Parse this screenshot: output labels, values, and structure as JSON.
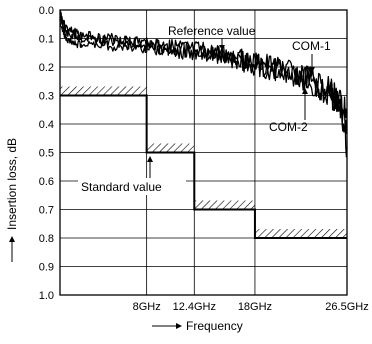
{
  "chart_data": {
    "type": "line",
    "title": "",
    "xlabel": "Frequency",
    "ylabel": "Insertion loss, dB",
    "ylim": [
      0.0,
      1.0
    ],
    "y_inverted": true,
    "y_ticks": [
      "0.0",
      "0.1",
      "0.2",
      "0.3",
      "0.4",
      "0.5",
      "0.6",
      "0.7",
      "0.8",
      "0.9",
      "1.0"
    ],
    "xlim": [
      0,
      26.5
    ],
    "x_ticks": [
      {
        "value": 8,
        "label": "8GHz"
      },
      {
        "value": 12.4,
        "label": "12.4GHz"
      },
      {
        "value": 18,
        "label": "18GHz"
      },
      {
        "value": 26.5,
        "label": "26.5GHz"
      }
    ],
    "grid": true,
    "series": [
      {
        "name": "Reference value",
        "x": [
          0,
          0.2,
          0.5,
          1,
          1.5,
          2,
          3,
          4,
          5,
          6,
          7,
          8,
          9,
          10,
          11,
          12,
          13,
          14,
          15,
          16,
          17,
          18,
          19,
          20,
          21,
          22,
          23,
          24,
          25,
          25.5,
          26,
          26.5
        ],
        "y": [
          0.0,
          0.03,
          0.06,
          0.07,
          0.08,
          0.09,
          0.09,
          0.1,
          0.1,
          0.11,
          0.11,
          0.12,
          0.12,
          0.13,
          0.13,
          0.14,
          0.14,
          0.15,
          0.16,
          0.17,
          0.17,
          0.19,
          0.19,
          0.2,
          0.21,
          0.23,
          0.24,
          0.26,
          0.28,
          0.3,
          0.33,
          0.36
        ]
      },
      {
        "name": "COM-1",
        "x": [
          0,
          0.3,
          0.6,
          1,
          1.5,
          2,
          3,
          4,
          5,
          6,
          7,
          8,
          9,
          10,
          11,
          12,
          13,
          14,
          15,
          16,
          17,
          18,
          19,
          20,
          21,
          22,
          23,
          24,
          25,
          25.5,
          26,
          26.5
        ],
        "y": [
          0.02,
          0.06,
          0.08,
          0.09,
          0.09,
          0.1,
          0.1,
          0.11,
          0.11,
          0.11,
          0.12,
          0.12,
          0.13,
          0.13,
          0.14,
          0.14,
          0.15,
          0.15,
          0.16,
          0.17,
          0.18,
          0.19,
          0.2,
          0.21,
          0.22,
          0.23,
          0.25,
          0.27,
          0.29,
          0.31,
          0.36,
          0.48
        ]
      },
      {
        "name": "COM-2",
        "x": [
          0,
          0.3,
          0.6,
          1,
          1.5,
          2,
          3,
          4,
          5,
          6,
          7,
          8,
          9,
          10,
          11,
          12,
          13,
          14,
          15,
          16,
          17,
          18,
          19,
          20,
          21,
          22,
          23,
          24,
          25,
          25.5,
          26,
          26.5
        ],
        "y": [
          0.04,
          0.08,
          0.1,
          0.11,
          0.12,
          0.12,
          0.12,
          0.12,
          0.13,
          0.13,
          0.13,
          0.13,
          0.14,
          0.14,
          0.15,
          0.15,
          0.16,
          0.16,
          0.17,
          0.18,
          0.19,
          0.2,
          0.21,
          0.22,
          0.23,
          0.24,
          0.26,
          0.28,
          0.3,
          0.32,
          0.35,
          0.42
        ]
      }
    ],
    "standard_value": {
      "label": "Standard value",
      "steps": [
        {
          "x0": 0,
          "x1": 8,
          "y": 0.3
        },
        {
          "x0": 8,
          "x1": 12.4,
          "y": 0.5
        },
        {
          "x0": 12.4,
          "x1": 18,
          "y": 0.7
        },
        {
          "x0": 18,
          "x1": 26.5,
          "y": 0.8
        }
      ]
    },
    "annotations": [
      "Reference value",
      "COM-1",
      "COM-2",
      "Standard value"
    ]
  }
}
